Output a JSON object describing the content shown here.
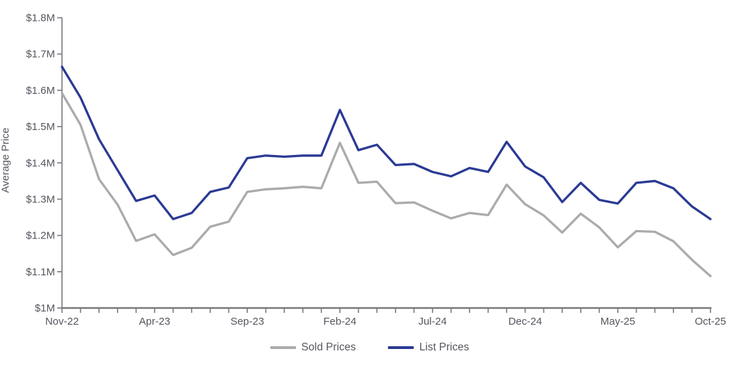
{
  "chart_data": {
    "type": "line",
    "title": "",
    "xlabel": "",
    "ylabel": "Average Price",
    "ylim": [
      1.0,
      1.8
    ],
    "y_ticks": [
      1.0,
      1.1,
      1.2,
      1.3,
      1.4,
      1.5,
      1.6,
      1.7,
      1.8
    ],
    "y_tick_labels": [
      "$1M",
      "$1.1M",
      "$1.2M",
      "$1.3M",
      "$1.4M",
      "$1.5M",
      "$1.6M",
      "$1.7M",
      "$1.8M"
    ],
    "x_tick_every": 5,
    "x_tick_labels": [
      "Nov-22",
      "Apr-23",
      "Sep-23",
      "Feb-24",
      "Jul-24",
      "Dec-24",
      "May-25",
      "Oct-25"
    ],
    "categories": [
      "Nov-22",
      "Dec-22",
      "Jan-23",
      "Feb-23",
      "Mar-23",
      "Apr-23",
      "May-23",
      "Jun-23",
      "Jul-23",
      "Aug-23",
      "Sep-23",
      "Oct-23",
      "Nov-23",
      "Dec-23",
      "Jan-24",
      "Feb-24",
      "Mar-24",
      "Apr-24",
      "May-24",
      "Jun-24",
      "Jul-24",
      "Aug-24",
      "Sep-24",
      "Oct-24",
      "Nov-24",
      "Dec-24",
      "Jan-25",
      "Feb-25",
      "Mar-25",
      "Apr-25",
      "May-25",
      "Jun-25",
      "Jul-25",
      "Aug-25",
      "Sep-25",
      "Oct-25"
    ],
    "units": "millions USD",
    "grid": false,
    "legend_position": "bottom",
    "series": [
      {
        "name": "Sold Prices",
        "color": "#ABABAD",
        "values": [
          1.592,
          1.505,
          1.355,
          1.285,
          1.185,
          1.203,
          1.146,
          1.166,
          1.224,
          1.238,
          1.32,
          1.327,
          1.33,
          1.334,
          1.33,
          1.455,
          1.345,
          1.348,
          1.289,
          1.291,
          1.268,
          1.247,
          1.262,
          1.256,
          1.34,
          1.286,
          1.255,
          1.208,
          1.26,
          1.222,
          1.167,
          1.212,
          1.21,
          1.184,
          1.133,
          1.088
        ]
      },
      {
        "name": "List Prices",
        "color": "#2B3A94",
        "values": [
          1.665,
          1.58,
          1.465,
          1.38,
          1.295,
          1.31,
          1.245,
          1.262,
          1.32,
          1.332,
          1.413,
          1.42,
          1.417,
          1.42,
          1.42,
          1.546,
          1.435,
          1.45,
          1.394,
          1.397,
          1.375,
          1.363,
          1.386,
          1.375,
          1.458,
          1.39,
          1.36,
          1.292,
          1.345,
          1.298,
          1.288,
          1.345,
          1.35,
          1.33,
          1.28,
          1.245
        ]
      }
    ]
  },
  "styles": {
    "axis_color": "#7a7a7c",
    "text_color": "#54565f",
    "background": "#ffffff"
  }
}
